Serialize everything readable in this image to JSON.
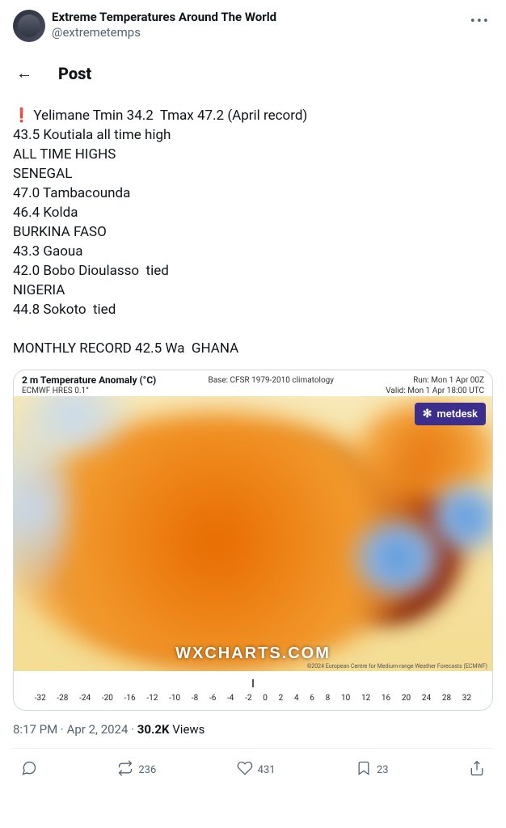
{
  "account": {
    "display_name": "Extreme Temperatures Around The World",
    "handle": "@extremetemps"
  },
  "post_bar": {
    "label": "Post"
  },
  "body": {
    "lines": [
      "❗ Yelimane Tmin 34.2  Tmax 47.2 (April record)",
      "43.5 Koutiala all time high",
      "ALL TIME HIGHS",
      "SENEGAL",
      "47.0 Tambacounda",
      "46.4 Kolda",
      "BURKINA FASO",
      "43.3 Gaoua",
      "42.0 Bobo Dioulasso  tied",
      "NIGERIA",
      "44.8 Sokoto  tied",
      "",
      "MONTHLY RECORD 42.5 Wa  GHANA"
    ]
  },
  "chart": {
    "title": "2 m Temperature Anomaly (°C)",
    "subtitle": "ECMWF HRES 0.1°",
    "base": "Base: CFSR 1979-2010 climatology",
    "run": "Run: Mon 1 Apr 00Z",
    "valid": "Valid: Mon 1 Apr 18:00 UTC",
    "watermark": "WXCHARTS.COM",
    "badge": "metdesk",
    "credit": "©2024 European Centre for Medium-range Weather Forecasts (ECMWF)",
    "scale_ticks": [
      "-32",
      "-28",
      "-24",
      "-20",
      "-16",
      "-12",
      "-10",
      "-8",
      "-6",
      "-4",
      "-2",
      "0",
      "2",
      "4",
      "6",
      "8",
      "10",
      "12",
      "16",
      "20",
      "24",
      "28",
      "32"
    ],
    "colors": {
      "background": "#f6e2a3",
      "hot_extreme": "#1a0e0a",
      "hot": "#7a1500",
      "warm": "#e86b00",
      "cool": "#4d8fd6",
      "badge_bg": "#3b2e8c"
    }
  },
  "meta": {
    "time": "8:17 PM",
    "date": "Apr 2, 2024",
    "views_count": "30.2K",
    "views_label": "Views"
  },
  "actions": {
    "retweets": "236",
    "likes": "431",
    "bookmarks": "23"
  }
}
